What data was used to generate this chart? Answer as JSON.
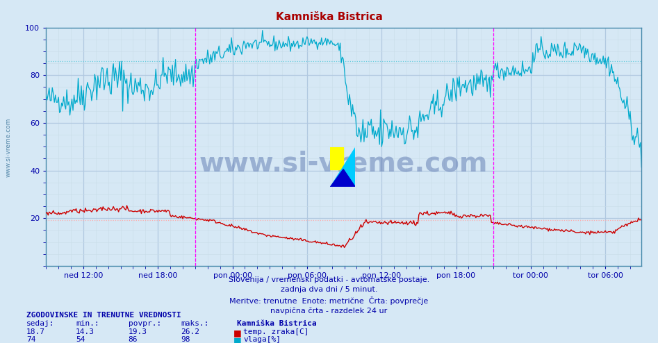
{
  "title": "Kamniška Bistrica",
  "title_color": "#aa0000",
  "bg_color": "#d6e8f5",
  "plot_bg_color": "#d6e8f5",
  "grid_color_major": "#b0c8e0",
  "grid_color_minor": "#c8dce8",
  "x_labels": [
    "ned 12:00",
    "ned 18:00",
    "pon 00:00",
    "pon 06:00",
    "pon 12:00",
    "pon 18:00",
    "tor 00:00",
    "tor 06:00"
  ],
  "x_label_color": "#0000aa",
  "y_ticks": [
    20,
    40,
    60,
    80,
    100
  ],
  "y_min": 0,
  "y_max": 100,
  "temp_color": "#cc0000",
  "humidity_color": "#00aacc",
  "temp_min": 14.3,
  "temp_max": 26.2,
  "temp_avg": 19.3,
  "temp_current": 18.7,
  "humidity_min": 54,
  "humidity_max": 98,
  "humidity_avg": 86,
  "humidity_current": 74,
  "avg_line_temp_color": "#ffaaaa",
  "avg_line_humidity_color": "#66ccdd",
  "magenta_vline_color": "#ff00ff",
  "subtitle1": "Slovenija / vremenski podatki - avtomatske postaje.",
  "subtitle2": "zadnja dva dni / 5 minut.",
  "subtitle3": "Meritve: trenutne  Enote: metrične  Črta: povprečje",
  "subtitle4": "navpična črta - razdelek 24 ur",
  "subtitle_color": "#0000aa",
  "footer_title": "ZGODOVINSKE IN TRENUTNE VREDNOSTI",
  "footer_col1": "sedaj:",
  "footer_col2": "min.:",
  "footer_col3": "povpr.:",
  "footer_col4": "maks.:",
  "footer_station": "Kamniška Bistrica",
  "watermark_text": "www.si-vreme.com",
  "watermark_color": "#1a3a8a",
  "sidebar_text": "www.si-vreme.com",
  "sidebar_color": "#5588aa",
  "n_points": 576,
  "vline_positions": [
    144,
    432
  ],
  "x_tick_positions": [
    36,
    108,
    180,
    252,
    324,
    396,
    468,
    540
  ]
}
